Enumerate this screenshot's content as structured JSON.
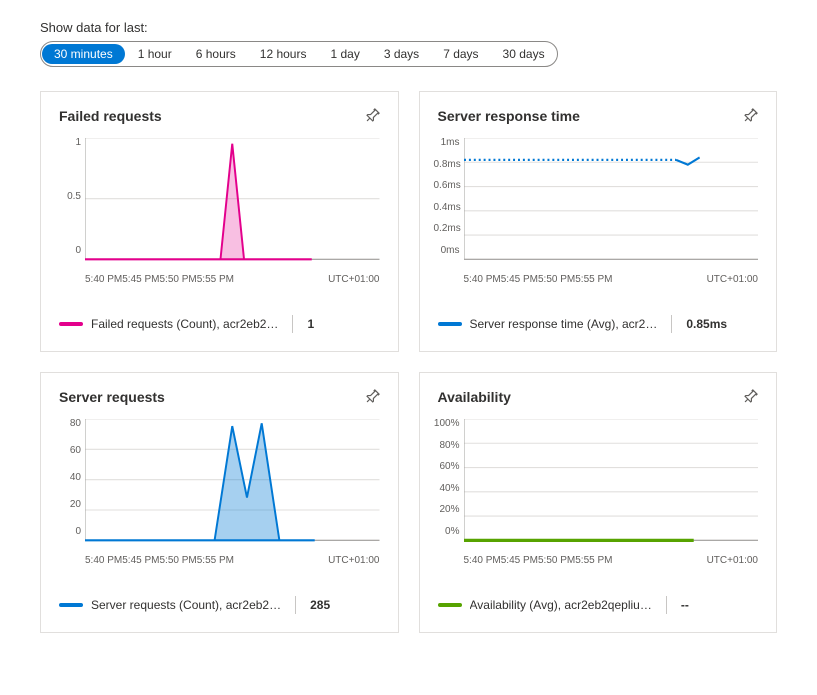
{
  "timerange": {
    "label": "Show data for last:",
    "options": [
      "30 minutes",
      "1 hour",
      "6 hours",
      "12 hours",
      "1 day",
      "3 days",
      "7 days",
      "30 days"
    ],
    "active_index": 0
  },
  "common_axis": {
    "x_ticks": [
      "5:40 PM",
      "5:45 PM",
      "5:50 PM",
      "5:55 PM"
    ],
    "tz": "UTC+01:00"
  },
  "cards": {
    "failed_requests": {
      "title": "Failed requests",
      "type": "area",
      "color": "#e3008c",
      "fill_opacity": 0.25,
      "y_ticks": [
        "1",
        "0.5",
        "0"
      ],
      "ymax": 1.05,
      "series": [
        {
          "x": 0,
          "y": 0
        },
        {
          "x": 0.46,
          "y": 0
        },
        {
          "x": 0.5,
          "y": 1
        },
        {
          "x": 0.54,
          "y": 0
        },
        {
          "x": 0.77,
          "y": 0
        }
      ],
      "legend_label": "Failed requests (Count), acr2eb2…",
      "legend_value": "1"
    },
    "server_response": {
      "title": "Server response time",
      "type": "line",
      "color": "#0078d4",
      "y_ticks": [
        "1ms",
        "0.8ms",
        "0.6ms",
        "0.4ms",
        "0.2ms",
        "0ms"
      ],
      "ymax": 1.0,
      "series": [
        {
          "x": 0,
          "y": 0.82
        },
        {
          "x": 0.2,
          "y": 0.82
        },
        {
          "x": 0.4,
          "y": 0.82
        },
        {
          "x": 0.6,
          "y": 0.82
        },
        {
          "x": 0.72,
          "y": 0.82
        },
        {
          "x": 0.76,
          "y": 0.78
        },
        {
          "x": 0.8,
          "y": 0.84
        }
      ],
      "dotted_until": 0.72,
      "legend_label": "Server response time (Avg), acr2…",
      "legend_value": "0.85ms"
    },
    "server_requests": {
      "title": "Server requests",
      "type": "area",
      "color": "#0078d4",
      "fill_opacity": 0.35,
      "y_ticks": [
        "80",
        "60",
        "40",
        "20",
        "0"
      ],
      "ymax": 85,
      "series": [
        {
          "x": 0,
          "y": 0
        },
        {
          "x": 0.44,
          "y": 0
        },
        {
          "x": 0.5,
          "y": 80
        },
        {
          "x": 0.55,
          "y": 30
        },
        {
          "x": 0.6,
          "y": 82
        },
        {
          "x": 0.66,
          "y": 0
        },
        {
          "x": 0.78,
          "y": 0
        }
      ],
      "legend_label": "Server requests (Count), acr2eb2…",
      "legend_value": "285"
    },
    "availability": {
      "title": "Availability",
      "type": "flatline",
      "color": "#57a300",
      "y_ticks": [
        "100%",
        "80%",
        "60%",
        "40%",
        "20%",
        "0%"
      ],
      "ymax": 100,
      "flat_y": 0,
      "xend": 0.78,
      "legend_label": "Availability (Avg), acr2eb2qepliu…",
      "legend_value": "--"
    }
  },
  "colors": {
    "gridline": "#e1dfdd",
    "axis": "#a19f9d",
    "text": "#323130",
    "pill_active_bg": "#0078d4"
  }
}
